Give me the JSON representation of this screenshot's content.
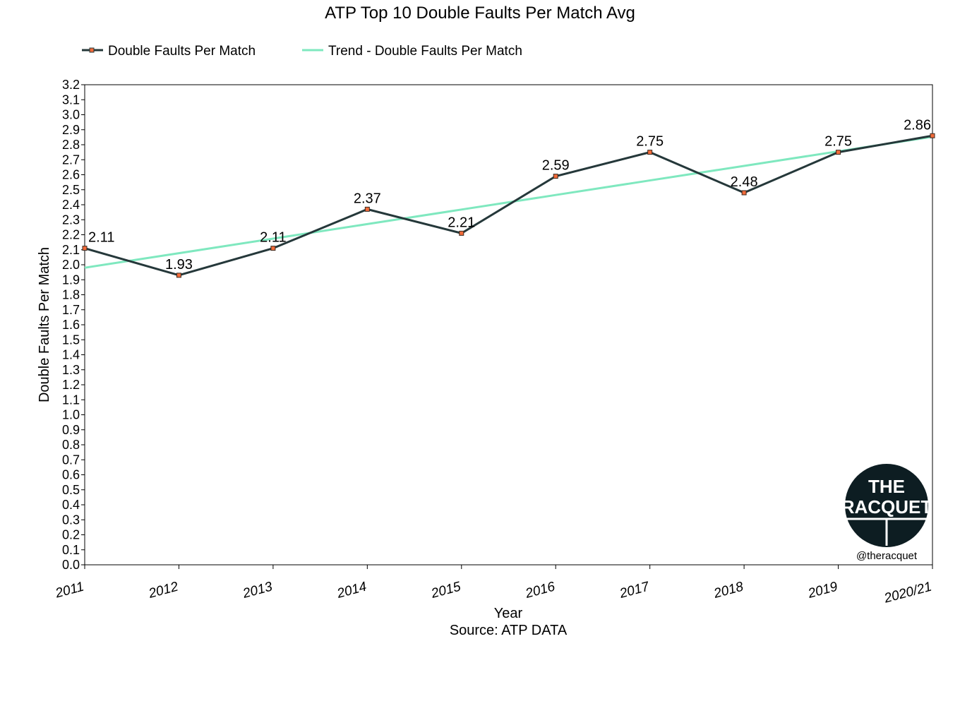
{
  "chart_data": {
    "type": "line",
    "title": "ATP Top 10 Double Faults Per Match Avg",
    "xlabel": "Year",
    "source": "Source: ATP DATA",
    "ylabel": "Double Faults Per Match",
    "categories": [
      "2011",
      "2012",
      "2013",
      "2014",
      "2015",
      "2016",
      "2017",
      "2018",
      "2019",
      "2020/21"
    ],
    "series": [
      {
        "name": "Double Faults Per Match",
        "values": [
          2.11,
          1.93,
          2.11,
          2.37,
          2.21,
          2.59,
          2.75,
          2.48,
          2.75,
          2.86
        ],
        "color": "#25383a",
        "marker_color": "#f26b3a"
      },
      {
        "name": "Trend - Double Faults Per Match",
        "values": [
          1.98,
          2.077,
          2.174,
          2.271,
          2.368,
          2.465,
          2.562,
          2.659,
          2.756,
          2.853
        ],
        "color": "#7fe8bf"
      }
    ],
    "ylim": [
      0,
      3.2
    ],
    "ytick_step": 0.1,
    "legend_position": "top",
    "grid": false
  },
  "logo": {
    "line1": "THE",
    "line2": "RACQUET",
    "handle": "@theracquet"
  }
}
